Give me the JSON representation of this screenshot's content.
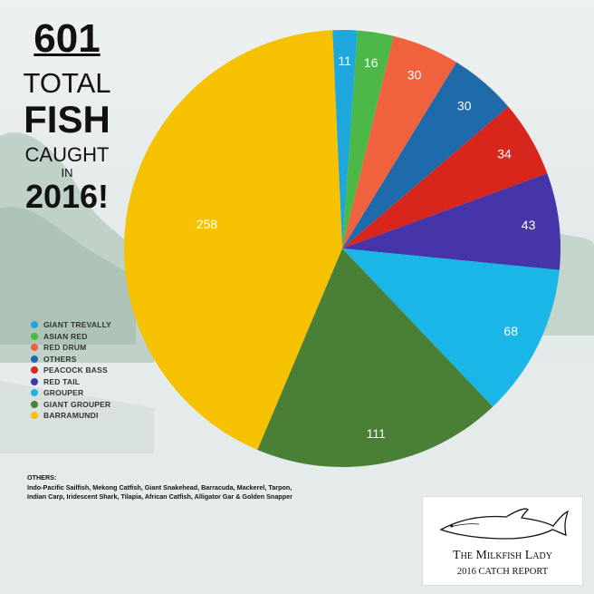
{
  "headline": {
    "number": "601",
    "total": "TOTAL",
    "fish": "FISH",
    "caught": "CAUGHT",
    "in": "IN",
    "year": "2016!"
  },
  "others_note": {
    "title": "OTHERS:",
    "text": "Indo-Pacific Sailfish, Mekong Catfish, Giant Snakehead, Barracuda, Mackerel, Tarpon, Indian Carp, Iridescent Shark, Tilapia, African Catfish, Alligator Gar & Golden Snapper"
  },
  "logo": {
    "title": "The Milkfish Lady",
    "subtitle": "2016 CATCH REPORT",
    "icon": "fish-icon"
  },
  "chart_data": {
    "type": "pie",
    "title": "",
    "labels": [
      "GIANT TREVALLY",
      "ASIAN RED",
      "RED DRUM",
      "OTHERS",
      "PEACOCK BASS",
      "RED TAIL",
      "GROUPER",
      "GIANT GROUPER",
      "BARRAMUNDI"
    ],
    "values": [
      11,
      16,
      30,
      30,
      34,
      43,
      68,
      111,
      258
    ],
    "colors": [
      "#1ea7dc",
      "#4cb848",
      "#f0623e",
      "#1f6aab",
      "#d9261c",
      "#4535a8",
      "#1bb6e8",
      "#4a7f36",
      "#f5c100"
    ],
    "legend_position": "left"
  }
}
